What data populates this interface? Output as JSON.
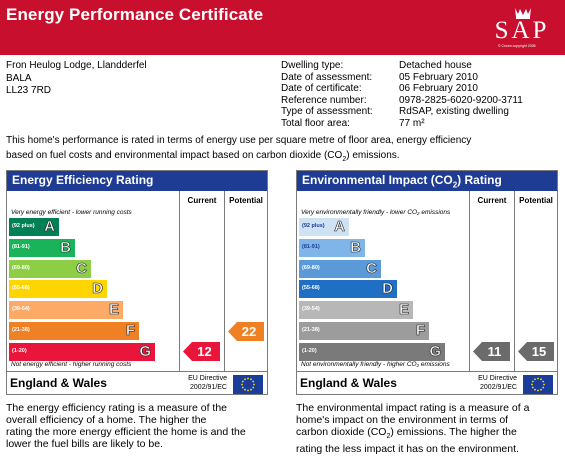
{
  "header": {
    "title": "Energy Performance Certificate",
    "logo_text": "SAP",
    "logo_copyright": "© Crown copyright 2005"
  },
  "address": {
    "line1": "Fron Heulog Lodge, Llandderfel",
    "line2": "BALA",
    "line3": "LL23 7RD"
  },
  "details": [
    {
      "label": "Dwelling type:",
      "value": "Detached house"
    },
    {
      "label": "Date of assessment:",
      "value": "05 February 2010"
    },
    {
      "label": "Date of certificate:",
      "value": "06 February 2010"
    },
    {
      "label": "Reference number:",
      "value": "0978-2825-6020-9200-3711"
    },
    {
      "label": "Type of assessment:",
      "value": "RdSAP, existing dwelling"
    },
    {
      "label": "Total floor area:",
      "value": "77 m²"
    }
  ],
  "intro": {
    "line1": "This home's performance is rated in terms of energy use per square metre of floor area, energy efficiency",
    "line2_pre": "based on fuel costs and environmental impact based on carbon dioxide (CO",
    "line2_sub": "2",
    "line2_post": ") emissions."
  },
  "colors": {
    "header_red": "#c8102e",
    "panel_blue": "#1e3c94",
    "energy_bands": [
      "#008054",
      "#19b459",
      "#8dce46",
      "#ffd500",
      "#fcaa65",
      "#ef8023",
      "#e9153b"
    ],
    "env_bands": [
      "#cfe2f3",
      "#7fb5e8",
      "#5a9ad9",
      "#1f6fc4",
      "#b7b7b7",
      "#9c9c9c",
      "#7a7a7a"
    ],
    "current_arrow": "#e9153b",
    "potential_arrow": "#ef8023",
    "env_arrow": "#6b6b6b"
  },
  "energy": {
    "title": "Energy Efficiency Rating",
    "col_current": "Current",
    "col_potential": "Potential",
    "top_text": "Very energy efficient - lower running costs",
    "bottom_text": "Not energy efficient - higher running costs",
    "bands": [
      {
        "range": "(92 plus)",
        "letter": "A"
      },
      {
        "range": "(81-91)",
        "letter": "B"
      },
      {
        "range": "(69-80)",
        "letter": "C"
      },
      {
        "range": "(55-68)",
        "letter": "D"
      },
      {
        "range": "(39-54)",
        "letter": "E"
      },
      {
        "range": "(21-38)",
        "letter": "F"
      },
      {
        "range": "(1-20)",
        "letter": "G"
      }
    ],
    "current": {
      "value": "12",
      "band": "G"
    },
    "potential": {
      "value": "22",
      "band": "F"
    },
    "footer_region": "England & Wales",
    "footer_directive_1": "EU Directive",
    "footer_directive_2": "2002/91/EC",
    "description": [
      "The energy efficiency rating is a measure of the",
      "overall efficiency of a home. The higher the",
      "rating the more energy efficient the home is and the",
      "lower the fuel bills are likely to be."
    ]
  },
  "environment": {
    "title_pre": "Environmental Impact (CO",
    "title_sub": "2",
    "title_post": ") Rating",
    "col_current": "Current",
    "col_potential": "Potential",
    "top_text": "Very environmentally friendly - lower CO₂ emissions",
    "bottom_text": "Not environmentally friendly - higher CO₂ emissions",
    "bands": [
      {
        "range": "(92 plus)",
        "letter": "A"
      },
      {
        "range": "(81-91)",
        "letter": "B"
      },
      {
        "range": "(69-80)",
        "letter": "C"
      },
      {
        "range": "(55-68)",
        "letter": "D"
      },
      {
        "range": "(39-54)",
        "letter": "E"
      },
      {
        "range": "(21-38)",
        "letter": "F"
      },
      {
        "range": "(1-20)",
        "letter": "G"
      }
    ],
    "current": {
      "value": "11",
      "band": "G"
    },
    "potential": {
      "value": "15",
      "band": "G"
    },
    "footer_region": "England & Wales",
    "footer_directive_1": "EU Directive",
    "footer_directive_2": "2002/91/EC",
    "description_1": "The environmental impact rating is a measure of a",
    "description_2": "home's impact on the environment in terms of",
    "description_3_pre": "carbon dioxide (CO",
    "description_3_sub": "2",
    "description_3_post": ") emissions. The higher the",
    "description_4": "rating the less impact it has on the environment."
  }
}
